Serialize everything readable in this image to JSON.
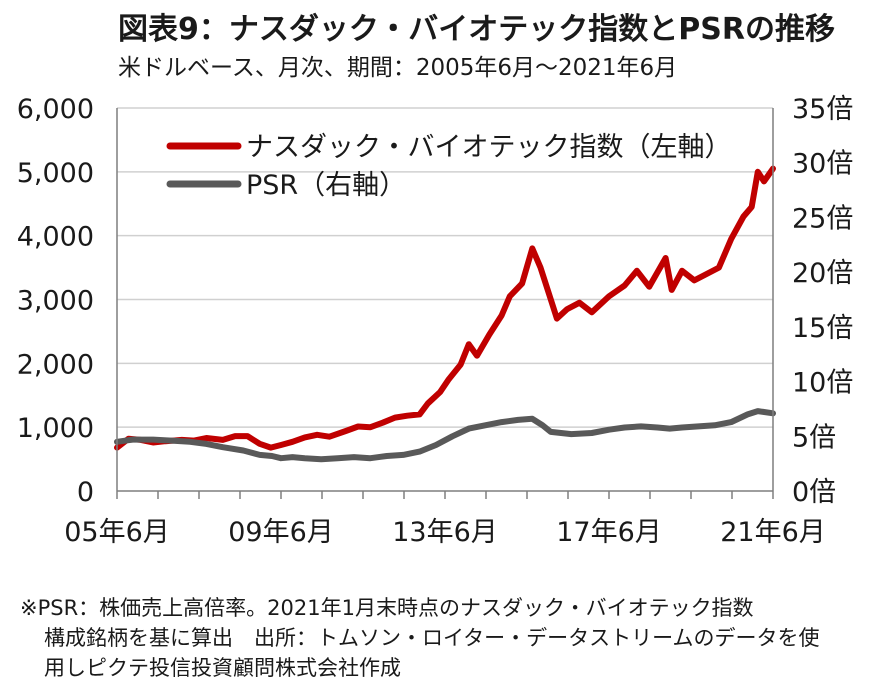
{
  "title": "図表9：ナスダック・バイオテック指数とPSRの推移",
  "subtitle": "米ドルベース、月次、期間：2005年6月～2021年6月",
  "notes": [
    "※PSR：株価売上高倍率。2021年1月末時点のナスダック・バイオテック指数",
    "構成銘柄を基に算出　出所：トムソン・ロイター・データストリームのデータを使",
    "用しピクテ投信投資顧問株式会社作成"
  ],
  "chart_data": {
    "type": "line",
    "x_ticks": [
      "05年6月",
      "09年6月",
      "13年6月",
      "17年6月",
      "21年6月"
    ],
    "y_left_ticks": [
      "0",
      "1,000",
      "2,000",
      "3,000",
      "4,000",
      "5,000",
      "6,000"
    ],
    "y_right_ticks": [
      "0倍",
      "5倍",
      "10倍",
      "15倍",
      "20倍",
      "25倍",
      "30倍",
      "35倍"
    ],
    "y_left_range": [
      0,
      6000
    ],
    "y_right_range": [
      0,
      35
    ],
    "x_range": [
      2005.42,
      2021.42
    ],
    "grid": true,
    "legend_position": "top-left",
    "series": [
      {
        "name": "ナスダック・バイオテック指数（左軸）",
        "axis": "left",
        "color": "#c00000",
        "points": [
          [
            2005.42,
            680
          ],
          [
            2005.7,
            820
          ],
          [
            2006.0,
            800
          ],
          [
            2006.3,
            760
          ],
          [
            2006.6,
            780
          ],
          [
            2007.0,
            800
          ],
          [
            2007.3,
            790
          ],
          [
            2007.6,
            830
          ],
          [
            2008.0,
            800
          ],
          [
            2008.3,
            860
          ],
          [
            2008.6,
            860
          ],
          [
            2008.9,
            740
          ],
          [
            2009.17,
            680
          ],
          [
            2009.42,
            720
          ],
          [
            2009.7,
            770
          ],
          [
            2010.0,
            840
          ],
          [
            2010.3,
            880
          ],
          [
            2010.6,
            850
          ],
          [
            2011.0,
            940
          ],
          [
            2011.3,
            1010
          ],
          [
            2011.6,
            1000
          ],
          [
            2011.9,
            1070
          ],
          [
            2012.2,
            1150
          ],
          [
            2012.5,
            1180
          ],
          [
            2012.8,
            1200
          ],
          [
            2013.0,
            1370
          ],
          [
            2013.3,
            1550
          ],
          [
            2013.5,
            1740
          ],
          [
            2013.8,
            1980
          ],
          [
            2014.0,
            2300
          ],
          [
            2014.2,
            2120
          ],
          [
            2014.5,
            2450
          ],
          [
            2014.8,
            2750
          ],
          [
            2015.0,
            3050
          ],
          [
            2015.3,
            3250
          ],
          [
            2015.55,
            3800
          ],
          [
            2015.75,
            3500
          ],
          [
            2016.0,
            3000
          ],
          [
            2016.15,
            2700
          ],
          [
            2016.4,
            2850
          ],
          [
            2016.7,
            2950
          ],
          [
            2017.0,
            2800
          ],
          [
            2017.42,
            3050
          ],
          [
            2017.8,
            3220
          ],
          [
            2018.1,
            3450
          ],
          [
            2018.4,
            3200
          ],
          [
            2018.8,
            3650
          ],
          [
            2018.95,
            3150
          ],
          [
            2019.2,
            3450
          ],
          [
            2019.5,
            3300
          ],
          [
            2019.8,
            3400
          ],
          [
            2020.1,
            3500
          ],
          [
            2020.4,
            3950
          ],
          [
            2020.7,
            4300
          ],
          [
            2020.9,
            4450
          ],
          [
            2021.05,
            5000
          ],
          [
            2021.2,
            4850
          ],
          [
            2021.42,
            5050
          ]
        ]
      },
      {
        "name": "PSR（右軸）",
        "axis": "right",
        "color": "#595959",
        "points": [
          [
            2005.42,
            4.5
          ],
          [
            2005.8,
            4.7
          ],
          [
            2006.3,
            4.7
          ],
          [
            2006.8,
            4.6
          ],
          [
            2007.2,
            4.5
          ],
          [
            2007.6,
            4.3
          ],
          [
            2008.0,
            4.0
          ],
          [
            2008.5,
            3.7
          ],
          [
            2008.9,
            3.3
          ],
          [
            2009.2,
            3.2
          ],
          [
            2009.42,
            3.0
          ],
          [
            2009.7,
            3.1
          ],
          [
            2010.0,
            3.0
          ],
          [
            2010.4,
            2.9
          ],
          [
            2010.8,
            3.0
          ],
          [
            2011.2,
            3.1
          ],
          [
            2011.6,
            3.0
          ],
          [
            2012.0,
            3.2
          ],
          [
            2012.4,
            3.3
          ],
          [
            2012.8,
            3.6
          ],
          [
            2013.2,
            4.2
          ],
          [
            2013.6,
            5.0
          ],
          [
            2014.0,
            5.7
          ],
          [
            2014.4,
            6.0
          ],
          [
            2014.8,
            6.3
          ],
          [
            2015.2,
            6.5
          ],
          [
            2015.55,
            6.6
          ],
          [
            2015.8,
            6.0
          ],
          [
            2016.0,
            5.4
          ],
          [
            2016.5,
            5.2
          ],
          [
            2017.0,
            5.3
          ],
          [
            2017.42,
            5.6
          ],
          [
            2017.8,
            5.8
          ],
          [
            2018.2,
            5.9
          ],
          [
            2018.6,
            5.8
          ],
          [
            2018.9,
            5.7
          ],
          [
            2019.2,
            5.8
          ],
          [
            2019.6,
            5.9
          ],
          [
            2020.0,
            6.0
          ],
          [
            2020.4,
            6.3
          ],
          [
            2020.8,
            7.0
          ],
          [
            2021.05,
            7.3
          ],
          [
            2021.42,
            7.1
          ]
        ]
      }
    ]
  }
}
